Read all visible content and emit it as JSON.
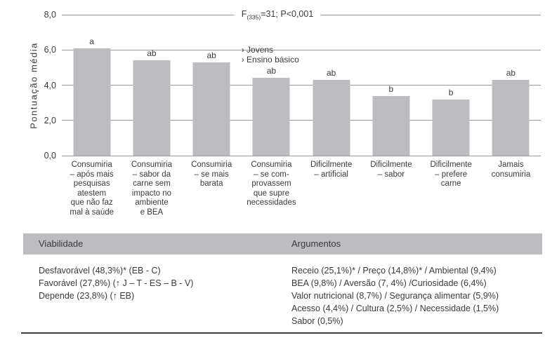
{
  "chart_data": {
    "type": "bar",
    "title_f": "F",
    "title_sub": "(335)",
    "title_rest": "=31; P<0,001",
    "ylabel": "Pontuação média",
    "xlabel": "",
    "ylim": [
      0,
      8
    ],
    "yticks": [
      {
        "value": 8,
        "label": "8,0"
      },
      {
        "value": 6,
        "label": "6,0"
      },
      {
        "value": 4,
        "label": "4,0"
      },
      {
        "value": 2,
        "label": "2,0"
      },
      {
        "value": 0,
        "label": "0,0"
      }
    ],
    "grid": true,
    "categories": [
      "Consumiria\n– após mais\npesquisas\natestem\nque não faz\nmal à saúde",
      "Consumiria\n– sabor da\ncarne sem\nimpacto no\nambiente\ne BEA",
      "Consumiria\n– se mais\nbarata",
      "Consumiria\n– se com-\nprovassem\nque supre\nnecessidades",
      "Dificilmente\n– artificial",
      "Dificilmente\n– sabor",
      "Dificilmente\n– prefere\ncarne",
      "Jamais\nconsumiria"
    ],
    "values": [
      6.1,
      5.4,
      5.3,
      4.4,
      4.3,
      3.4,
      3.2,
      4.3
    ],
    "sig_letters": [
      "a",
      "ab",
      "ab",
      "ab",
      "ab",
      "b",
      "b",
      "ab"
    ],
    "annotation": {
      "bar_index": 3,
      "text": "› Jovens\n› Ensino básico"
    },
    "colors": {
      "bar_fill": "#bdbdc1",
      "gridline": "#9a9a9a",
      "text": "#3a3a3a"
    }
  },
  "table": {
    "headers": {
      "viability": "Viabilidade",
      "arguments": "Argumentos"
    },
    "header_band_color": "#bdbdc1",
    "bottom_rule_color": "#3f3f3f",
    "viability_lines": "Desfavorável (48,3%)* (EB - C)\nFavorável (27,8%) (↑ J – T - ES – B - V)\nDepende (23,8%) (↑ EB)",
    "arguments_lines": "Receio (25,1%)* / Preço (14,8%)* / Ambiental (9,4%)\nBEA (9,8%) / Aversão (7, 4%) /Curiosidade (6,4%)\nValor nutricional (8,7%) / Segurança alimentar (5,9%)\nAcesso (4,4%) / Cultura (2,5%) / Necessidade (1,5%)\nSabor (0,5%)"
  }
}
